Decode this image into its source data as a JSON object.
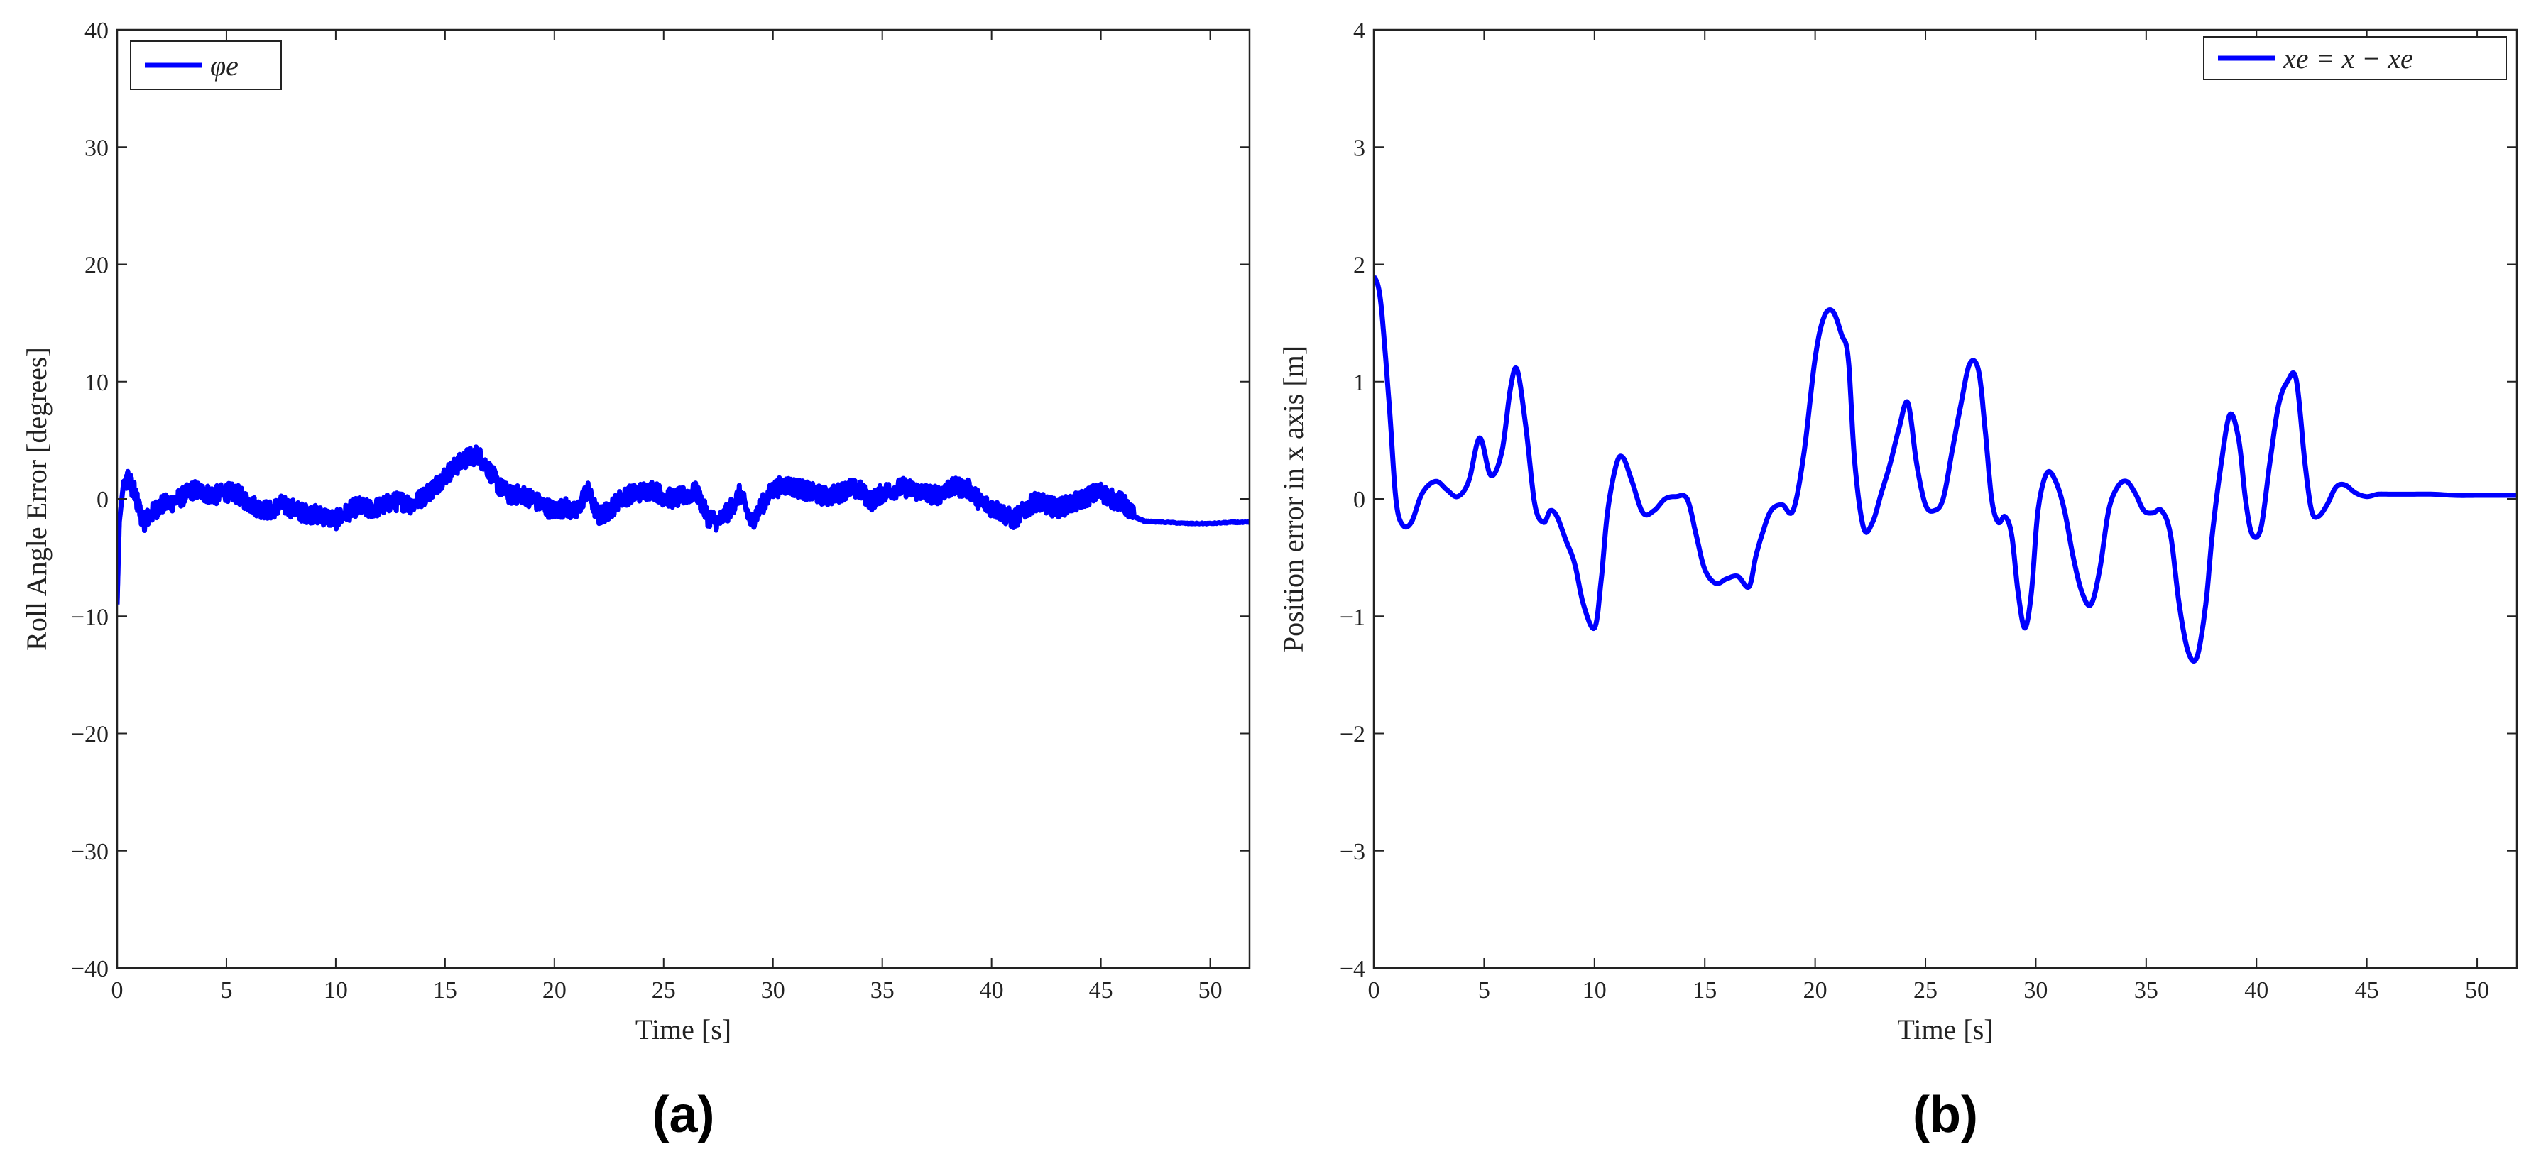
{
  "chart_data": [
    {
      "type": "line",
      "panel_label": "(a)",
      "xlabel": "Time [s]",
      "ylabel": "Roll Angle Error [degrees]",
      "xlim": [
        0,
        51.8
      ],
      "ylim": [
        -40,
        40
      ],
      "xticks": [
        0,
        5,
        10,
        15,
        20,
        25,
        30,
        35,
        40,
        45,
        50
      ],
      "yticks": [
        -40,
        -30,
        -20,
        -10,
        0,
        10,
        20,
        30,
        40
      ],
      "grid": false,
      "legend_position": "top-left",
      "series": [
        {
          "name": "φe",
          "color": "#0000ff",
          "noise_amplitude": 0.8,
          "x": [
            0,
            0.1,
            0.3,
            0.5,
            0.8,
            1.2,
            1.6,
            2.0,
            2.5,
            3.0,
            3.5,
            4.0,
            4.5,
            5.0,
            5.5,
            6.0,
            6.5,
            7.0,
            7.5,
            8.0,
            8.5,
            9.0,
            9.5,
            10.0,
            10.5,
            11.0,
            11.5,
            12.0,
            12.5,
            13.0,
            13.5,
            14.0,
            14.5,
            15.0,
            15.5,
            16.0,
            16.5,
            17.0,
            17.5,
            18.0,
            18.5,
            19.0,
            19.5,
            20.0,
            20.5,
            21.0,
            21.5,
            22.0,
            22.5,
            23.0,
            23.5,
            24.0,
            24.5,
            25.0,
            25.5,
            26.0,
            26.5,
            27.0,
            27.5,
            28.0,
            28.5,
            29.0,
            29.5,
            30.0,
            30.5,
            31.0,
            31.5,
            32.0,
            32.5,
            33.0,
            33.5,
            34.0,
            34.5,
            35.0,
            35.5,
            36.0,
            36.5,
            37.0,
            37.5,
            38.0,
            38.5,
            39.0,
            39.5,
            40.0,
            40.5,
            41.0,
            41.5,
            42.0,
            42.5,
            43.0,
            43.5,
            44.0,
            44.5,
            45.0,
            45.5,
            46.0,
            46.5,
            47.0,
            48.0,
            49.0,
            50.0,
            51.0,
            51.8
          ],
          "y": [
            -9,
            -2,
            1.5,
            1.8,
            0.5,
            -2,
            -1.2,
            -0.5,
            -0.3,
            0.2,
            0.8,
            0.5,
            0.3,
            0.6,
            0.4,
            -0.3,
            -0.8,
            -1.0,
            -0.5,
            -0.8,
            -1.2,
            -1.3,
            -1.5,
            -1.8,
            -1.2,
            -0.6,
            -0.9,
            -0.7,
            -0.3,
            -0.2,
            -0.5,
            0.2,
            1.0,
            2.0,
            2.8,
            3.5,
            3.8,
            2.5,
            1.0,
            0.3,
            0.4,
            0.0,
            -0.6,
            -1.0,
            -0.7,
            -1.2,
            0.8,
            -1.5,
            -1.0,
            0.0,
            0.4,
            0.6,
            0.8,
            0.2,
            0.0,
            0.3,
            0.6,
            -1.5,
            -2.0,
            -1.0,
            0.5,
            -2.0,
            -0.5,
            0.8,
            1.2,
            1.0,
            0.7,
            0.4,
            0.2,
            0.5,
            0.9,
            0.7,
            -0.2,
            0.5,
            0.8,
            1.0,
            0.7,
            0.5,
            0.3,
            0.9,
            1.0,
            0.8,
            -0.3,
            -0.7,
            -1.2,
            -1.8,
            -1.0,
            -0.2,
            -0.5,
            -0.8,
            -0.5,
            -0.2,
            0.3,
            0.6,
            0.0,
            -0.3,
            -1.5,
            -1.9,
            -2.0,
            -2.1,
            -2.1,
            -2.0,
            -2.0
          ]
        }
      ]
    },
    {
      "type": "line",
      "panel_label": "(b)",
      "xlabel": "Time [s]",
      "ylabel": "Position error in x axis [m]",
      "xlim": [
        0,
        51.8
      ],
      "ylim": [
        -4,
        4
      ],
      "xticks": [
        0,
        5,
        10,
        15,
        20,
        25,
        30,
        35,
        40,
        45,
        50
      ],
      "yticks": [
        -4,
        -3,
        -2,
        -1,
        0,
        1,
        2,
        3,
        4
      ],
      "grid": false,
      "legend_position": "top-right",
      "series": [
        {
          "name": "xe = x − xe",
          "color": "#0000ff",
          "x": [
            0,
            0.3,
            0.7,
            1.0,
            1.3,
            1.7,
            2.2,
            2.8,
            3.3,
            3.8,
            4.3,
            4.8,
            5.3,
            5.8,
            6.2,
            6.5,
            6.9,
            7.3,
            7.7,
            8.0,
            8.3,
            8.7,
            9.1,
            9.5,
            10.0,
            10.3,
            10.6,
            11.0,
            11.3,
            11.7,
            12.2,
            12.7,
            13.2,
            13.7,
            14.2,
            14.6,
            15.0,
            15.5,
            16.0,
            16.5,
            17.0,
            17.3,
            17.6,
            18.0,
            18.5,
            19.0,
            19.5,
            20.0,
            20.4,
            20.8,
            21.2,
            21.5,
            21.8,
            22.2,
            22.6,
            23.0,
            23.4,
            23.8,
            24.2,
            24.6,
            25.0,
            25.4,
            25.8,
            26.2,
            26.6,
            27.0,
            27.4,
            27.7,
            28.0,
            28.3,
            28.6,
            28.9,
            29.2,
            29.5,
            29.8,
            30.1,
            30.5,
            30.9,
            31.3,
            31.7,
            32.1,
            32.5,
            32.9,
            33.3,
            33.7,
            34.1,
            34.5,
            34.9,
            35.3,
            35.7,
            36.1,
            36.5,
            36.9,
            37.3,
            37.7,
            38.0,
            38.4,
            38.8,
            39.2,
            39.5,
            39.8,
            40.2,
            40.6,
            41.0,
            41.4,
            41.8,
            42.2,
            42.5,
            42.8,
            43.2,
            43.6,
            44.0,
            44.5,
            45.0,
            45.5,
            46.0,
            46.5,
            47.0,
            48.0,
            49.0,
            50.0,
            51.0,
            51.8
          ],
          "y": [
            1.9,
            1.7,
            0.8,
            0.0,
            -0.22,
            -0.2,
            0.05,
            0.15,
            0.08,
            0.02,
            0.15,
            0.52,
            0.2,
            0.4,
            0.95,
            1.1,
            0.6,
            -0.05,
            -0.2,
            -0.1,
            -0.15,
            -0.35,
            -0.55,
            -0.9,
            -1.1,
            -0.7,
            -0.1,
            0.3,
            0.35,
            0.15,
            -0.12,
            -0.1,
            0.0,
            0.02,
            0.0,
            -0.3,
            -0.6,
            -0.72,
            -0.68,
            -0.66,
            -0.75,
            -0.5,
            -0.3,
            -0.1,
            -0.05,
            -0.1,
            0.4,
            1.2,
            1.55,
            1.6,
            1.4,
            1.2,
            0.3,
            -0.25,
            -0.2,
            0.05,
            0.3,
            0.6,
            0.82,
            0.3,
            -0.05,
            -0.1,
            0.0,
            0.4,
            0.8,
            1.15,
            1.1,
            0.6,
            0.0,
            -0.2,
            -0.15,
            -0.3,
            -0.8,
            -1.1,
            -0.8,
            -0.1,
            0.22,
            0.15,
            -0.1,
            -0.5,
            -0.8,
            -0.9,
            -0.6,
            -0.1,
            0.1,
            0.15,
            0.05,
            -0.1,
            -0.12,
            -0.1,
            -0.3,
            -0.9,
            -1.3,
            -1.35,
            -0.9,
            -0.3,
            0.3,
            0.72,
            0.5,
            0.0,
            -0.3,
            -0.25,
            0.3,
            0.8,
            1.0,
            1.02,
            0.3,
            -0.1,
            -0.15,
            -0.05,
            0.1,
            0.12,
            0.05,
            0.02,
            0.04,
            0.04,
            0.04,
            0.04,
            0.04,
            0.03,
            0.03,
            0.03,
            0.03
          ]
        }
      ]
    }
  ]
}
